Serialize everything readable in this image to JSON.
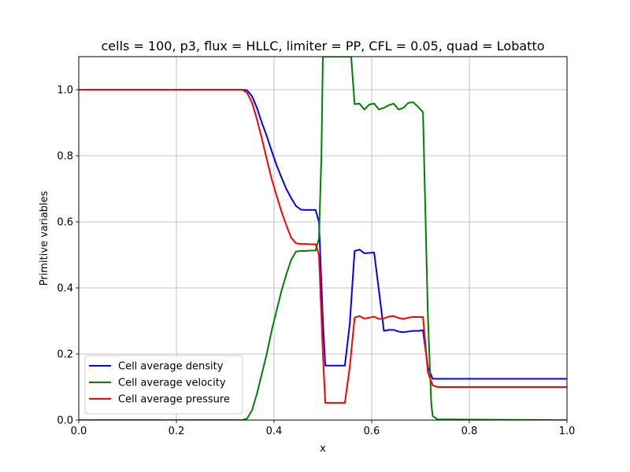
{
  "chart_data": {
    "type": "line",
    "title": "cells = 100, p3, flux = HLLC, limiter = PP, CFL = 0.05, quad = Lobatto",
    "xlabel": "x",
    "ylabel": "Primitive variables",
    "xlim": [
      0.0,
      1.0
    ],
    "ylim": [
      0.0,
      1.1
    ],
    "xticks": [
      "0.0",
      "0.2",
      "0.4",
      "0.6",
      "0.8",
      "1.0"
    ],
    "yticks": [
      "0.0",
      "0.2",
      "0.4",
      "0.6",
      "0.8",
      "1.0"
    ],
    "grid": true,
    "legend_position": "bottom-left",
    "series": [
      {
        "name": "Cell average density",
        "color": "#0000ff",
        "points": [
          [
            0.0,
            1.0
          ],
          [
            0.335,
            1.0
          ],
          [
            0.345,
            0.998
          ],
          [
            0.355,
            0.98
          ],
          [
            0.365,
            0.945
          ],
          [
            0.375,
            0.9
          ],
          [
            0.385,
            0.86
          ],
          [
            0.395,
            0.815
          ],
          [
            0.405,
            0.772
          ],
          [
            0.415,
            0.735
          ],
          [
            0.425,
            0.7
          ],
          [
            0.435,
            0.672
          ],
          [
            0.445,
            0.648
          ],
          [
            0.455,
            0.637
          ],
          [
            0.465,
            0.636
          ],
          [
            0.475,
            0.636
          ],
          [
            0.485,
            0.636
          ],
          [
            0.492,
            0.6
          ],
          [
            0.5,
            0.3
          ],
          [
            0.505,
            0.165
          ],
          [
            0.515,
            0.165
          ],
          [
            0.525,
            0.165
          ],
          [
            0.535,
            0.165
          ],
          [
            0.545,
            0.165
          ],
          [
            0.555,
            0.29
          ],
          [
            0.565,
            0.512
          ],
          [
            0.575,
            0.516
          ],
          [
            0.585,
            0.505
          ],
          [
            0.595,
            0.506
          ],
          [
            0.605,
            0.507
          ],
          [
            0.615,
            0.39
          ],
          [
            0.625,
            0.27
          ],
          [
            0.635,
            0.273
          ],
          [
            0.645,
            0.273
          ],
          [
            0.655,
            0.268
          ],
          [
            0.665,
            0.266
          ],
          [
            0.675,
            0.268
          ],
          [
            0.685,
            0.27
          ],
          [
            0.695,
            0.27
          ],
          [
            0.705,
            0.272
          ],
          [
            0.715,
            0.16
          ],
          [
            0.725,
            0.125
          ],
          [
            0.735,
            0.125
          ],
          [
            1.0,
            0.125
          ]
        ]
      },
      {
        "name": "Cell average velocity",
        "color": "#008000",
        "points": [
          [
            0.0,
            0.0
          ],
          [
            0.335,
            0.0
          ],
          [
            0.345,
            0.005
          ],
          [
            0.355,
            0.03
          ],
          [
            0.365,
            0.08
          ],
          [
            0.375,
            0.14
          ],
          [
            0.385,
            0.2
          ],
          [
            0.395,
            0.27
          ],
          [
            0.405,
            0.33
          ],
          [
            0.415,
            0.39
          ],
          [
            0.425,
            0.44
          ],
          [
            0.435,
            0.485
          ],
          [
            0.445,
            0.51
          ],
          [
            0.455,
            0.512
          ],
          [
            0.465,
            0.512
          ],
          [
            0.475,
            0.513
          ],
          [
            0.485,
            0.513
          ],
          [
            0.492,
            0.55
          ],
          [
            0.497,
            0.8
          ],
          [
            0.5,
            1.1
          ],
          [
            0.558,
            1.1
          ],
          [
            0.565,
            0.956
          ],
          [
            0.575,
            0.958
          ],
          [
            0.585,
            0.94
          ],
          [
            0.595,
            0.955
          ],
          [
            0.605,
            0.958
          ],
          [
            0.615,
            0.94
          ],
          [
            0.625,
            0.945
          ],
          [
            0.635,
            0.953
          ],
          [
            0.645,
            0.958
          ],
          [
            0.655,
            0.94
          ],
          [
            0.665,
            0.945
          ],
          [
            0.675,
            0.96
          ],
          [
            0.685,
            0.962
          ],
          [
            0.695,
            0.948
          ],
          [
            0.705,
            0.932
          ],
          [
            0.715,
            0.32
          ],
          [
            0.722,
            0.05
          ],
          [
            0.725,
            0.012
          ],
          [
            0.735,
            0.002
          ],
          [
            1.0,
            0.0
          ]
        ]
      },
      {
        "name": "Cell average pressure",
        "color": "#ff0000",
        "points": [
          [
            0.0,
            1.0
          ],
          [
            0.335,
            1.0
          ],
          [
            0.345,
            0.99
          ],
          [
            0.355,
            0.96
          ],
          [
            0.365,
            0.91
          ],
          [
            0.375,
            0.852
          ],
          [
            0.385,
            0.79
          ],
          [
            0.395,
            0.73
          ],
          [
            0.405,
            0.68
          ],
          [
            0.415,
            0.632
          ],
          [
            0.425,
            0.59
          ],
          [
            0.435,
            0.552
          ],
          [
            0.445,
            0.535
          ],
          [
            0.455,
            0.533
          ],
          [
            0.465,
            0.533
          ],
          [
            0.475,
            0.532
          ],
          [
            0.485,
            0.532
          ],
          [
            0.492,
            0.5
          ],
          [
            0.5,
            0.2
          ],
          [
            0.505,
            0.052
          ],
          [
            0.515,
            0.052
          ],
          [
            0.525,
            0.052
          ],
          [
            0.535,
            0.052
          ],
          [
            0.545,
            0.052
          ],
          [
            0.555,
            0.16
          ],
          [
            0.565,
            0.31
          ],
          [
            0.575,
            0.315
          ],
          [
            0.585,
            0.307
          ],
          [
            0.595,
            0.31
          ],
          [
            0.605,
            0.313
          ],
          [
            0.615,
            0.306
          ],
          [
            0.625,
            0.308
          ],
          [
            0.635,
            0.313
          ],
          [
            0.645,
            0.315
          ],
          [
            0.655,
            0.309
          ],
          [
            0.665,
            0.306
          ],
          [
            0.675,
            0.31
          ],
          [
            0.685,
            0.312
          ],
          [
            0.695,
            0.312
          ],
          [
            0.705,
            0.312
          ],
          [
            0.715,
            0.145
          ],
          [
            0.725,
            0.105
          ],
          [
            0.735,
            0.1
          ],
          [
            1.0,
            0.1
          ]
        ]
      }
    ]
  }
}
